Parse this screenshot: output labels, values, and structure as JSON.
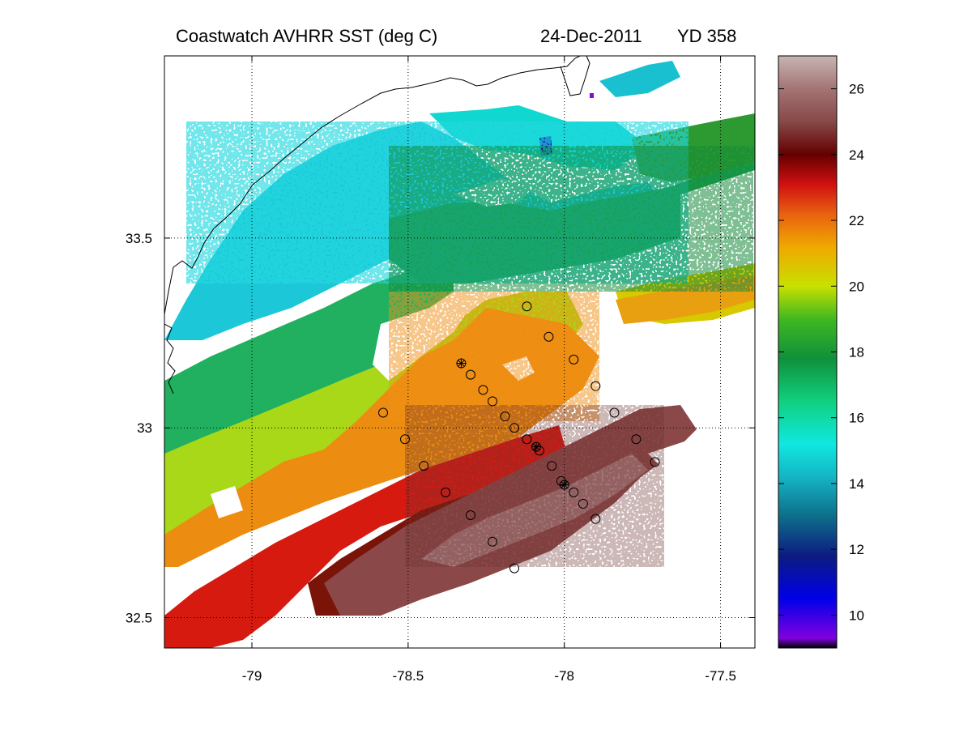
{
  "title": {
    "part1": "Coastwatch   AVHRR   SST  (deg C)",
    "part2": "24-Dec-2011",
    "part3": "YD 358"
  },
  "chart_data": {
    "type": "heatmap",
    "variable": "SST (deg C)",
    "grid": true,
    "xlim": [
      -79.28,
      -77.39
    ],
    "ylim": [
      32.42,
      33.98
    ],
    "xticks": [
      -79,
      -78.5,
      -78,
      -77.5
    ],
    "xtick_labels": [
      "-79",
      "-78.5",
      "-78",
      "-77.5"
    ],
    "yticks": [
      32.5,
      33,
      33.5
    ],
    "ytick_labels": [
      "32.5",
      "33",
      "33.5"
    ],
    "colorbar": {
      "position": "right",
      "range": [
        9,
        27
      ],
      "ticks": [
        10,
        12,
        14,
        16,
        18,
        20,
        22,
        24,
        26
      ],
      "tick_labels": [
        "10",
        "12",
        "14",
        "16",
        "18",
        "20",
        "22",
        "24",
        "26"
      ],
      "stops": [
        {
          "value": 9.0,
          "color": "#000000"
        },
        {
          "value": 9.3,
          "color": "#8000e0"
        },
        {
          "value": 10.5,
          "color": "#0000e8"
        },
        {
          "value": 11.8,
          "color": "#0c1c80"
        },
        {
          "value": 13.0,
          "color": "#0e6e8a"
        },
        {
          "value": 14.2,
          "color": "#14b4c4"
        },
        {
          "value": 15.2,
          "color": "#10e8e0"
        },
        {
          "value": 16.5,
          "color": "#10d080"
        },
        {
          "value": 17.8,
          "color": "#10903a"
        },
        {
          "value": 19.0,
          "color": "#40b820"
        },
        {
          "value": 20.0,
          "color": "#c8e000"
        },
        {
          "value": 21.2,
          "color": "#f0a800"
        },
        {
          "value": 22.2,
          "color": "#e86010"
        },
        {
          "value": 23.1,
          "color": "#d01010"
        },
        {
          "value": 24.0,
          "color": "#640000"
        },
        {
          "value": 25.0,
          "color": "#884848"
        },
        {
          "value": 26.0,
          "color": "#a47474"
        },
        {
          "value": 27.0,
          "color": "#c8b4b4"
        }
      ]
    },
    "stations": [
      {
        "lon": -78.58,
        "lat": 33.04,
        "marker": "circle"
      },
      {
        "lon": -78.51,
        "lat": 32.97,
        "marker": "circle"
      },
      {
        "lon": -78.45,
        "lat": 32.9,
        "marker": "circle"
      },
      {
        "lon": -78.38,
        "lat": 32.83,
        "marker": "circle"
      },
      {
        "lon": -78.3,
        "lat": 32.77,
        "marker": "circle"
      },
      {
        "lon": -78.23,
        "lat": 32.7,
        "marker": "circle"
      },
      {
        "lon": -78.16,
        "lat": 32.63,
        "marker": "circle"
      },
      {
        "lon": -78.33,
        "lat": 33.17,
        "marker": "circle-cross"
      },
      {
        "lon": -78.3,
        "lat": 33.14,
        "marker": "circle"
      },
      {
        "lon": -78.26,
        "lat": 33.1,
        "marker": "circle"
      },
      {
        "lon": -78.23,
        "lat": 33.07,
        "marker": "circle"
      },
      {
        "lon": -78.19,
        "lat": 33.03,
        "marker": "circle"
      },
      {
        "lon": -78.16,
        "lat": 33.0,
        "marker": "circle"
      },
      {
        "lon": -78.12,
        "lat": 32.97,
        "marker": "circle"
      },
      {
        "lon": -78.09,
        "lat": 32.95,
        "marker": "circle-cross"
      },
      {
        "lon": -78.08,
        "lat": 32.94,
        "marker": "circle"
      },
      {
        "lon": -78.04,
        "lat": 32.9,
        "marker": "circle"
      },
      {
        "lon": -78.01,
        "lat": 32.86,
        "marker": "circle"
      },
      {
        "lon": -78.0,
        "lat": 32.85,
        "marker": "circle-cross"
      },
      {
        "lon": -77.97,
        "lat": 32.83,
        "marker": "circle"
      },
      {
        "lon": -77.94,
        "lat": 32.8,
        "marker": "circle"
      },
      {
        "lon": -77.9,
        "lat": 32.76,
        "marker": "circle"
      },
      {
        "lon": -78.12,
        "lat": 33.32,
        "marker": "circle"
      },
      {
        "lon": -78.05,
        "lat": 33.24,
        "marker": "circle"
      },
      {
        "lon": -77.97,
        "lat": 33.18,
        "marker": "circle"
      },
      {
        "lon": -77.9,
        "lat": 33.11,
        "marker": "circle"
      },
      {
        "lon": -77.84,
        "lat": 33.04,
        "marker": "circle"
      },
      {
        "lon": -77.77,
        "lat": 32.97,
        "marker": "circle"
      },
      {
        "lon": -77.71,
        "lat": 32.91,
        "marker": "circle"
      }
    ]
  }
}
